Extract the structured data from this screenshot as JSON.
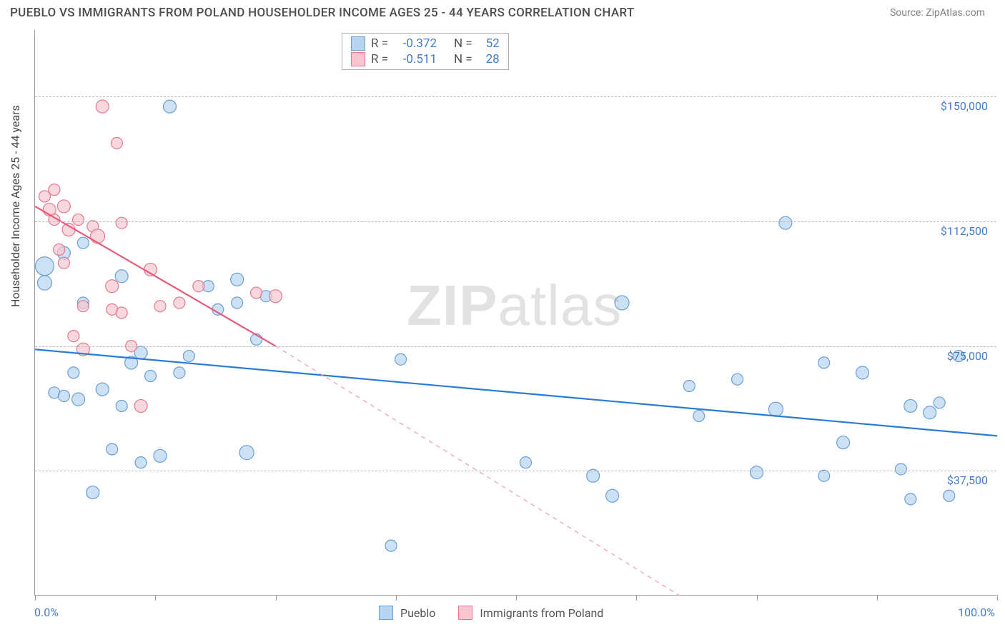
{
  "header": {
    "title": "PUEBLO VS IMMIGRANTS FROM POLAND HOUSEHOLDER INCOME AGES 25 - 44 YEARS CORRELATION CHART",
    "source": "Source: ZipAtlas.com"
  },
  "chart": {
    "type": "scatter",
    "ylabel": "Householder Income Ages 25 - 44 years",
    "xlabel_min": "0.0%",
    "xlabel_max": "100.0%",
    "xlim": [
      0,
      100
    ],
    "ylim": [
      0,
      170000
    ],
    "y_ticks": [
      37500,
      75000,
      112500,
      150000
    ],
    "y_tick_labels": [
      "$37,500",
      "$75,000",
      "$112,500",
      "$150,000"
    ],
    "x_ticks": [
      0,
      12.5,
      25,
      37.5,
      50,
      62.5,
      75,
      87.5,
      100
    ],
    "grid_color": "#bbbbbb",
    "background_color": "#ffffff",
    "series": {
      "pueblo": {
        "label": "Pueblo",
        "fill": "#b8d4f0",
        "stroke": "#6a9fd4",
        "fill_opacity": 0.7,
        "trend": {
          "color": "#2a7bd6",
          "dash_color": "#2a7bd6",
          "width": 2.2,
          "x1": 0,
          "y1": 74000,
          "x2": 100,
          "y2": 48000
        },
        "R": "-0.372",
        "N": "52",
        "points": [
          [
            1,
            94000,
            10
          ],
          [
            1,
            99000,
            13
          ],
          [
            2,
            61000,
            8
          ],
          [
            3,
            60000,
            8
          ],
          [
            3,
            103000,
            9
          ],
          [
            4,
            67000,
            8
          ],
          [
            4.5,
            59000,
            9
          ],
          [
            5,
            88000,
            8
          ],
          [
            5,
            106000,
            8
          ],
          [
            6,
            31000,
            9
          ],
          [
            7,
            62000,
            9
          ],
          [
            8,
            44000,
            8
          ],
          [
            9,
            96000,
            9
          ],
          [
            9,
            57000,
            8
          ],
          [
            10,
            70000,
            9
          ],
          [
            11,
            73000,
            9
          ],
          [
            11,
            40000,
            8
          ],
          [
            12,
            66000,
            8
          ],
          [
            13,
            42000,
            9
          ],
          [
            14,
            147000,
            9
          ],
          [
            15,
            67000,
            8
          ],
          [
            16,
            72000,
            8
          ],
          [
            18,
            93000,
            8
          ],
          [
            19,
            86000,
            8
          ],
          [
            21,
            95000,
            9
          ],
          [
            21,
            88000,
            8
          ],
          [
            22,
            43000,
            10
          ],
          [
            23,
            77000,
            8
          ],
          [
            24,
            90000,
            8
          ],
          [
            37,
            15000,
            8
          ],
          [
            38,
            71000,
            8
          ],
          [
            51,
            40000,
            8
          ],
          [
            58,
            36000,
            9
          ],
          [
            60,
            30000,
            9
          ],
          [
            61,
            88000,
            10
          ],
          [
            68,
            63000,
            8
          ],
          [
            69,
            54000,
            8
          ],
          [
            73,
            65000,
            8
          ],
          [
            75,
            37000,
            9
          ],
          [
            77,
            56000,
            10
          ],
          [
            78,
            112000,
            9
          ],
          [
            82,
            70000,
            8
          ],
          [
            82,
            36000,
            8
          ],
          [
            84,
            46000,
            9
          ],
          [
            86,
            67000,
            9
          ],
          [
            90,
            38000,
            8
          ],
          [
            91,
            57000,
            9
          ],
          [
            91,
            29000,
            8
          ],
          [
            93,
            55000,
            9
          ],
          [
            94,
            58000,
            8
          ],
          [
            95,
            30000,
            8
          ],
          [
            96,
            72000,
            8
          ]
        ]
      },
      "poland": {
        "label": "Immigrants from Poland",
        "fill": "#f7c6d0",
        "stroke": "#e27b8f",
        "fill_opacity": 0.7,
        "trend": {
          "color": "#e85a7a",
          "dash_color": "#f4a8b8",
          "width": 2.2,
          "x1": 0,
          "y1": 117000,
          "x2_solid": 25,
          "y2_solid": 75000,
          "x2_dash": 67,
          "y2_dash": 0
        },
        "R": "-0.511",
        "N": "28",
        "points": [
          [
            1,
            120000,
            8
          ],
          [
            1.5,
            116000,
            9
          ],
          [
            2,
            122000,
            8
          ],
          [
            2,
            113000,
            8
          ],
          [
            2.5,
            104000,
            8
          ],
          [
            3,
            117000,
            9
          ],
          [
            3,
            100000,
            8
          ],
          [
            3.5,
            110000,
            9
          ],
          [
            4,
            78000,
            8
          ],
          [
            4.5,
            113000,
            8
          ],
          [
            5,
            87000,
            8
          ],
          [
            5,
            74000,
            9
          ],
          [
            6,
            111000,
            8
          ],
          [
            6.5,
            108000,
            10
          ],
          [
            7,
            147000,
            9
          ],
          [
            8,
            86000,
            8
          ],
          [
            8,
            93000,
            9
          ],
          [
            8.5,
            136000,
            8
          ],
          [
            9,
            85000,
            8
          ],
          [
            9,
            112000,
            8
          ],
          [
            10,
            75000,
            8
          ],
          [
            11,
            57000,
            9
          ],
          [
            12,
            98000,
            9
          ],
          [
            13,
            87000,
            8
          ],
          [
            15,
            88000,
            8
          ],
          [
            17,
            93000,
            8
          ],
          [
            23,
            91000,
            8
          ],
          [
            25,
            90000,
            9
          ]
        ]
      }
    },
    "watermark": "ZIPatlas"
  },
  "legend_top": {
    "rows": [
      {
        "swatch_fill": "#b8d4f0",
        "swatch_stroke": "#6a9fd4",
        "r_label": "R =",
        "r_val": "-0.372",
        "n_label": "N =",
        "n_val": "52"
      },
      {
        "swatch_fill": "#f7c6d0",
        "swatch_stroke": "#e27b8f",
        "r_label": "R =",
        "r_val": "-0.511",
        "n_label": "N =",
        "n_val": "28"
      }
    ]
  },
  "legend_bottom": {
    "items": [
      {
        "swatch_fill": "#b8d4f0",
        "swatch_stroke": "#6a9fd4",
        "label": "Pueblo"
      },
      {
        "swatch_fill": "#f7c6d0",
        "swatch_stroke": "#e27b8f",
        "label": "Immigrants from Poland"
      }
    ]
  }
}
